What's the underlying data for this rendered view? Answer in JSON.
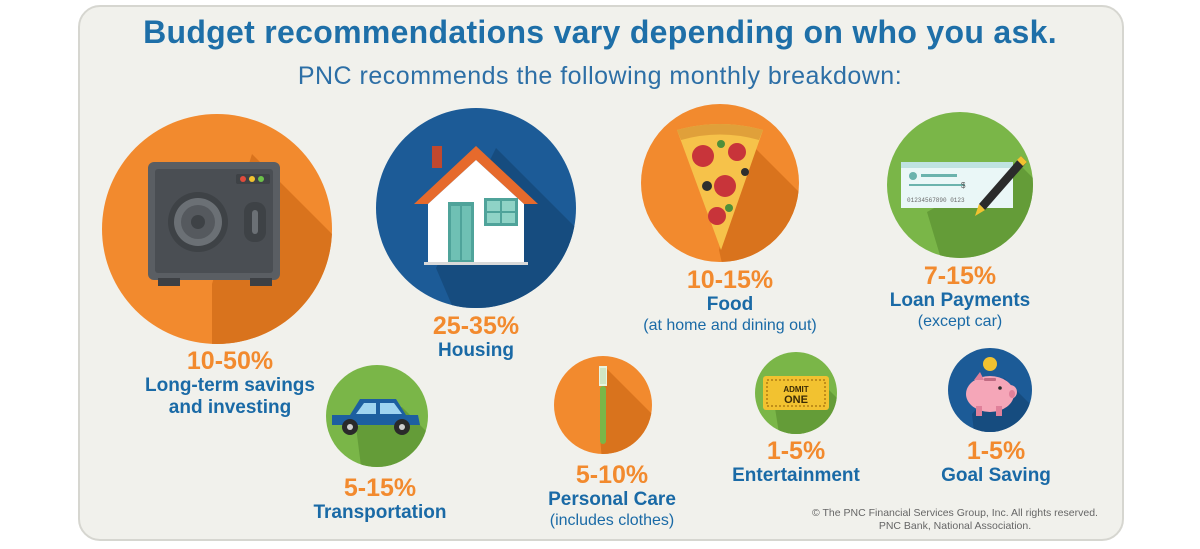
{
  "header": {
    "title": "Budget recommendations vary depending on who you ask.",
    "subtitle": "PNC recommends the following monthly breakdown:"
  },
  "categories": [
    {
      "id": "savings",
      "percent": "10-50%",
      "label": "Long-term savings",
      "label2": "and investing",
      "note": "",
      "icon": "safe-icon"
    },
    {
      "id": "housing",
      "percent": "25-35%",
      "label": "Housing",
      "note": "",
      "icon": "house-icon"
    },
    {
      "id": "food",
      "percent": "10-15%",
      "label": "Food",
      "note": "(at home and dining out)",
      "icon": "pizza-icon"
    },
    {
      "id": "loans",
      "percent": "7-15%",
      "label": "Loan Payments",
      "note": "(except car)",
      "icon": "check-icon"
    },
    {
      "id": "transportation",
      "percent": "5-15%",
      "label": "Transportation",
      "note": "",
      "icon": "car-icon"
    },
    {
      "id": "personal_care",
      "percent": "5-10%",
      "label": "Personal Care",
      "note": "(includes clothes)",
      "icon": "toothbrush-icon"
    },
    {
      "id": "entertainment",
      "percent": "1-5%",
      "label": "Entertainment",
      "note": "",
      "icon": "ticket-icon"
    },
    {
      "id": "goal_saving",
      "percent": "1-5%",
      "label": "Goal Saving",
      "note": "",
      "icon": "piggy-bank-icon"
    }
  ],
  "icon_text": {
    "ticket": [
      "ADMIT",
      "ONE"
    ],
    "check_dollar": "$",
    "check_number": "01234567890  0123"
  },
  "footer": {
    "line1": "© The PNC Financial Services Group, Inc. All rights reserved.",
    "line2": "PNC Bank, National Association."
  },
  "colors": {
    "orange": "#f28a2e",
    "blue": "#1a6aa6",
    "green": "#7ab648",
    "background": "#f1f1ec"
  }
}
